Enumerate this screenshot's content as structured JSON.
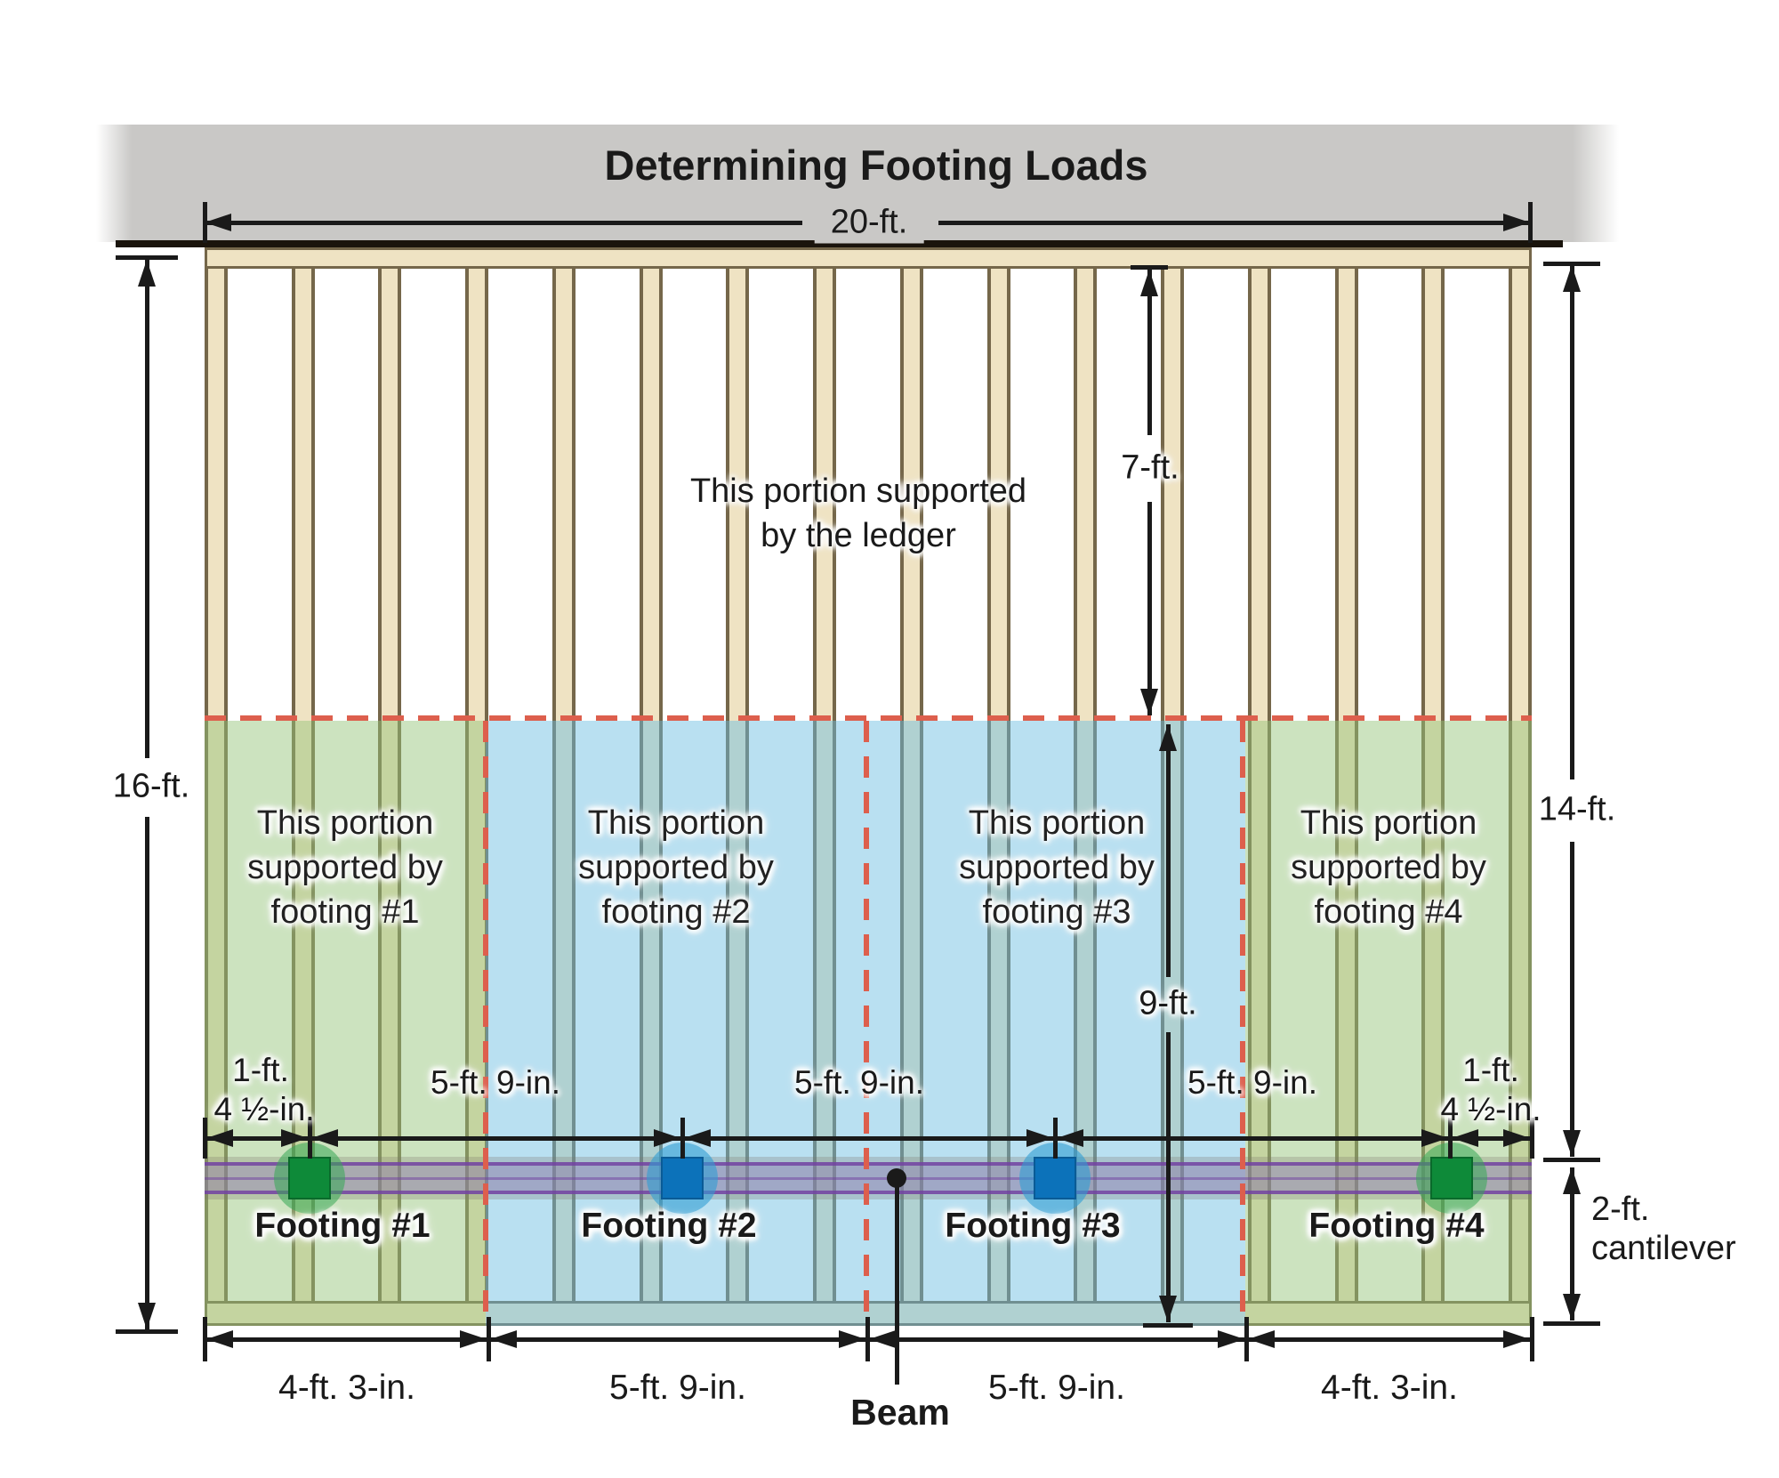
{
  "title": "Determining Footing Loads",
  "dimensions": {
    "top_width": "20-ft.",
    "left_height": "16-ft.",
    "upper_right": "7-ft.",
    "lower_right": "9-ft.",
    "right_total": "14-ft.",
    "cantilever": {
      "line1": "2-ft.",
      "line2": "cantilever"
    }
  },
  "ledger_note": {
    "line1": "This portion supported",
    "line2": "by the ledger"
  },
  "zones": [
    {
      "line1": "This portion",
      "line2": "supported by",
      "line3": "footing #1",
      "color": "green"
    },
    {
      "line1": "This portion",
      "line2": "supported by",
      "line3": "footing #2",
      "color": "blue"
    },
    {
      "line1": "This portion",
      "line2": "supported by",
      "line3": "footing #3",
      "color": "blue"
    },
    {
      "line1": "This portion",
      "line2": "supported by",
      "line3": "footing #4",
      "color": "green"
    }
  ],
  "footings": [
    {
      "label": "Footing #1",
      "color": "green"
    },
    {
      "label": "Footing #2",
      "color": "blue"
    },
    {
      "label": "Footing #3",
      "color": "blue"
    },
    {
      "label": "Footing #4",
      "color": "green"
    }
  ],
  "beam_label": "Beam",
  "beam_row_dims": {
    "left_stack": {
      "line1": "1-ft.",
      "line2": "4 ½-in."
    },
    "mid": [
      "5-ft. 9-in.",
      "5-ft. 9-in.",
      "5-ft. 9-in."
    ],
    "right_stack": {
      "line1": "1-ft.",
      "line2": "4 ½-in."
    }
  },
  "bottom_dims": [
    "4-ft. 3-in.",
    "5-ft. 9-in.",
    "5-ft. 9-in.",
    "4-ft. 3-in."
  ],
  "colors": {
    "header_band": "#c9c8c6",
    "zone_green_tint": "#cde4c6",
    "zone_blue_tint": "#b8dff0",
    "dashed_red": "#dd5f4d",
    "beam_purple": "#7a4ea6",
    "joist_tan": "#efe3c3",
    "joist_edge": "#75674a",
    "footing_green": "#0e8a39",
    "footing_blue": "#0c72ba",
    "line_black": "#1a1a1a"
  }
}
